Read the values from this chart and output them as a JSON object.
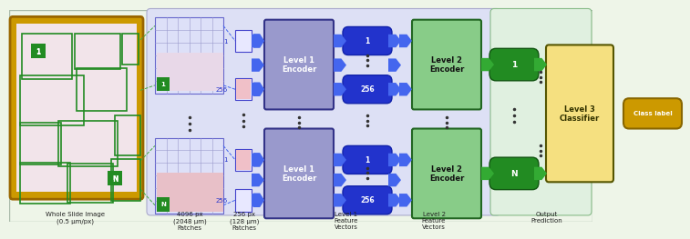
{
  "bg_color": "#eef5e8",
  "pipe_bg_color": "#dde0f5",
  "pipe_bg_edge": "#aaaacc",
  "out_bg_color": "#e0f0e0",
  "out_bg_edge": "#88bb88",
  "wsi_border_color": "#cc9900",
  "wsi_inner_color": "#f5eef0",
  "wsi_grid_color": "#228B22",
  "patch_grid_fc": "#dde0f8",
  "patch_grid_ec": "#6666cc",
  "patch_grid_line": "#9999cc",
  "small_patch_fc": "#e8e8ff",
  "small_patch_ec": "#4444cc",
  "enc1_fc": "#9999cc",
  "enc1_ec": "#333388",
  "enc2_fc": "#88cc88",
  "enc2_ec": "#226622",
  "feat_fc": "#2233cc",
  "feat_ec": "#001199",
  "green_oval_fc": "#228B22",
  "green_oval_ec": "#115511",
  "classifier_fc": "#f5e080",
  "classifier_ec": "#555500",
  "class_label_fc": "#cc9900",
  "class_label_ec": "#886600",
  "arrow_blue": "#4466ee",
  "arrow_green": "#33aa33",
  "arrow_gold": "#cc9900",
  "dashed_green": "#44aa44",
  "dashed_blue": "#4466ee",
  "dot_color": "#333333",
  "labels": [
    "Whole Slide Image\n(0.5 μm/px)",
    "4096 px\n(2048 μm)\nPatches",
    "256 px\n(128 μm)\nPatches",
    "Level 1\nFeature\nVectors",
    "Level 2\nFeature\nVectors",
    "Output\nPrediction"
  ],
  "label_fontsize": 5.0
}
